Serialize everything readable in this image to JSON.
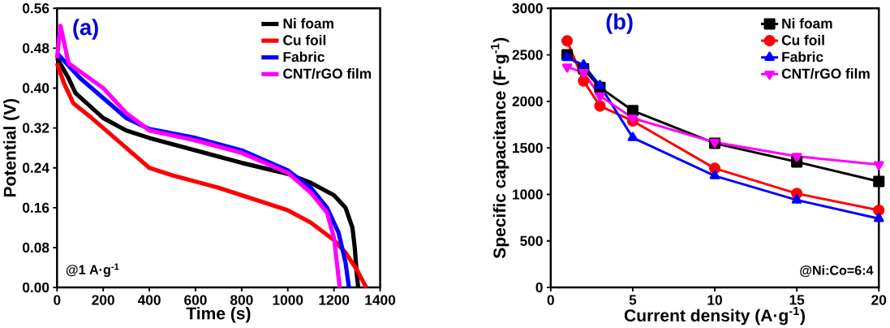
{
  "chart_data": [
    {
      "type": "line",
      "xlabel": "Time (s)",
      "ylabel": "Potential (V)",
      "xlim": [
        0,
        1400
      ],
      "ylim": [
        0,
        0.56
      ],
      "xticks": [
        0,
        200,
        400,
        600,
        800,
        1000,
        1200,
        1400
      ],
      "yticks": [
        {
          "value": 0,
          "label": "0.00"
        },
        {
          "value": 0.08,
          "label": "0.08"
        },
        {
          "value": 0.16,
          "label": "0.16"
        },
        {
          "value": 0.24,
          "label": "0.24"
        },
        {
          "value": 0.32,
          "label": "0.32"
        },
        {
          "value": 0.4,
          "label": "0.40"
        },
        {
          "value": 0.48,
          "label": "0.48"
        },
        {
          "value": 0.56,
          "label": "0.56"
        }
      ],
      "legend": "top right",
      "marker": "none",
      "annotations": [
        "(a)",
        "@1 A·g$^{-1}$"
      ],
      "series": [
        {
          "name": "Ni foam",
          "color": "#000000",
          "x": [
            0,
            50,
            80,
            200,
            300,
            400,
            600,
            800,
            1000,
            1100,
            1200,
            1250,
            1280,
            1290,
            1300,
            1305
          ],
          "values": [
            0.46,
            0.42,
            0.39,
            0.34,
            0.315,
            0.3,
            0.275,
            0.25,
            0.228,
            0.21,
            0.185,
            0.16,
            0.12,
            0.08,
            0.02,
            0
          ]
        },
        {
          "name": "Cu foil",
          "color": "#ff0000",
          "x": [
            0,
            30,
            70,
            150,
            250,
            300,
            400,
            500,
            700,
            900,
            1000,
            1100,
            1200,
            1250,
            1300,
            1340
          ],
          "values": [
            0.45,
            0.41,
            0.37,
            0.34,
            0.3,
            0.28,
            0.24,
            0.225,
            0.2,
            0.17,
            0.155,
            0.13,
            0.095,
            0.07,
            0.035,
            0
          ]
        },
        {
          "name": "Fabric",
          "color": "#0000ff",
          "x": [
            0,
            100,
            200,
            300,
            400,
            600,
            800,
            1000,
            1100,
            1170,
            1220,
            1250,
            1265
          ],
          "values": [
            0.47,
            0.42,
            0.38,
            0.34,
            0.318,
            0.3,
            0.275,
            0.235,
            0.2,
            0.16,
            0.11,
            0.05,
            0
          ]
        },
        {
          "name": "CNT/rGO film",
          "color": "#ff00ff",
          "x": [
            0,
            15,
            50,
            200,
            300,
            400,
            600,
            800,
            1000,
            1100,
            1170,
            1200,
            1215,
            1225
          ],
          "values": [
            0.46,
            0.525,
            0.45,
            0.4,
            0.35,
            0.315,
            0.295,
            0.27,
            0.23,
            0.19,
            0.15,
            0.1,
            0.04,
            0
          ]
        }
      ]
    },
    {
      "type": "line",
      "xlabel": "Current density (A·g$^{-1}$)",
      "ylabel": "Specific capacitance (F·g$^{-1}$)",
      "xlim": [
        0,
        20
      ],
      "ylim": [
        0,
        3000
      ],
      "xticks": [
        0,
        5,
        10,
        15,
        20
      ],
      "yticks": [
        0,
        500,
        1000,
        1500,
        2000,
        2500,
        3000
      ],
      "legend": "top right",
      "annotations": [
        "(b)",
        "@Ni:Co=6:4"
      ],
      "x": [
        1,
        2,
        3,
        5,
        10,
        15,
        20
      ],
      "series": [
        {
          "name": "Ni foam",
          "color": "#000000",
          "marker": "square",
          "values": [
            2500,
            2350,
            2150,
            1900,
            1550,
            1350,
            1140
          ]
        },
        {
          "name": "Cu foil",
          "color": "#ff0000",
          "marker": "circle",
          "values": [
            2650,
            2220,
            1950,
            1790,
            1280,
            1010,
            830
          ]
        },
        {
          "name": "Fabric",
          "color": "#0000ff",
          "marker": "triangle",
          "values": [
            2470,
            2390,
            2170,
            1610,
            1200,
            940,
            740
          ]
        },
        {
          "name": "CNT/rGO film",
          "color": "#ff00ff",
          "marker": "triangle-down",
          "values": [
            2370,
            2310,
            2060,
            1820,
            1560,
            1410,
            1320
          ]
        }
      ]
    }
  ]
}
